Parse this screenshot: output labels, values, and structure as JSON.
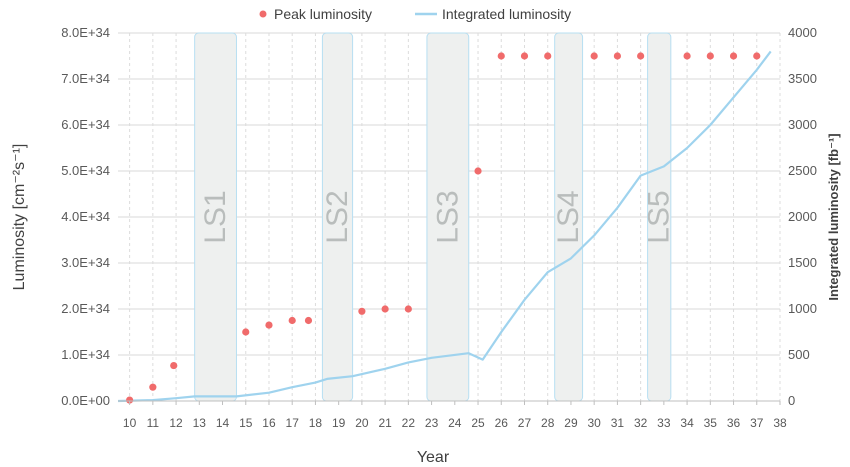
{
  "chart_data": {
    "type": "line",
    "xlabel": "Year",
    "ylabel_left": "Luminosity [cm⁻²s⁻¹]",
    "ylabel_right": "Integrated luminosity [fb⁻¹]",
    "x_ticks": [
      "10",
      "11",
      "12",
      "13",
      "14",
      "15",
      "16",
      "17",
      "18",
      "19",
      "20",
      "21",
      "22",
      "23",
      "24",
      "25",
      "26",
      "27",
      "28",
      "29",
      "30",
      "31",
      "32",
      "33",
      "34",
      "35",
      "36",
      "37",
      "38"
    ],
    "xlim": [
      9.5,
      38
    ],
    "ylim_left": [
      0,
      8e+34
    ],
    "ylim_right": [
      0,
      4000
    ],
    "y_left_ticks": [
      "0.0E+00",
      "1.0E+34",
      "2.0E+34",
      "3.0E+34",
      "4.0E+34",
      "5.0E+34",
      "6.0E+34",
      "7.0E+34",
      "8.0E+34"
    ],
    "y_right_ticks": [
      "0",
      "500",
      "1000",
      "1500",
      "2000",
      "2500",
      "3000",
      "3500",
      "4000"
    ],
    "grid": true,
    "legend_position": "top",
    "long_shutdowns": [
      {
        "label": "LS1",
        "start": 12.8,
        "end": 14.6
      },
      {
        "label": "LS2",
        "start": 18.3,
        "end": 19.6
      },
      {
        "label": "LS3",
        "start": 22.8,
        "end": 24.6
      },
      {
        "label": "LS4",
        "start": 28.3,
        "end": 29.5
      },
      {
        "label": "LS5",
        "start": 32.3,
        "end": 33.3
      }
    ],
    "series": [
      {
        "name": "Peak luminosity",
        "kind": "scatter",
        "axis": "left",
        "color": "#f06b6b",
        "points": [
          [
            10,
            2e+32
          ],
          [
            11,
            3e+33
          ],
          [
            11.9,
            7.7e+33
          ],
          [
            15,
            1.5e+34
          ],
          [
            16,
            1.65e+34
          ],
          [
            17,
            1.75e+34
          ],
          [
            17.7,
            1.75e+34
          ],
          [
            20,
            1.95e+34
          ],
          [
            21,
            2e+34
          ],
          [
            22,
            2e+34
          ],
          [
            25,
            5e+34
          ],
          [
            26,
            7.5e+34
          ],
          [
            27,
            7.5e+34
          ],
          [
            28,
            7.5e+34
          ],
          [
            30,
            7.5e+34
          ],
          [
            31,
            7.5e+34
          ],
          [
            32,
            7.5e+34
          ],
          [
            34,
            7.5e+34
          ],
          [
            35,
            7.5e+34
          ],
          [
            36,
            7.5e+34
          ],
          [
            37,
            7.5e+34
          ]
        ]
      },
      {
        "name": "Integrated luminosity",
        "kind": "line",
        "axis": "right",
        "color": "#9fd3ee",
        "points": [
          [
            9.5,
            0
          ],
          [
            11,
            10
          ],
          [
            12,
            30
          ],
          [
            12.8,
            50
          ],
          [
            13,
            50
          ],
          [
            14.6,
            50
          ],
          [
            16,
            90
          ],
          [
            17,
            150
          ],
          [
            18,
            200
          ],
          [
            18.5,
            240
          ],
          [
            19.6,
            270
          ],
          [
            21,
            350
          ],
          [
            22,
            420
          ],
          [
            23,
            470
          ],
          [
            24.6,
            520
          ],
          [
            25.2,
            450
          ],
          [
            26,
            750
          ],
          [
            27,
            1100
          ],
          [
            28,
            1400
          ],
          [
            29,
            1550
          ],
          [
            30,
            1800
          ],
          [
            31,
            2100
          ],
          [
            32,
            2450
          ],
          [
            33,
            2550
          ],
          [
            34,
            2750
          ],
          [
            35,
            3000
          ],
          [
            36,
            3300
          ],
          [
            37,
            3600
          ],
          [
            37.6,
            3800
          ]
        ]
      }
    ]
  }
}
